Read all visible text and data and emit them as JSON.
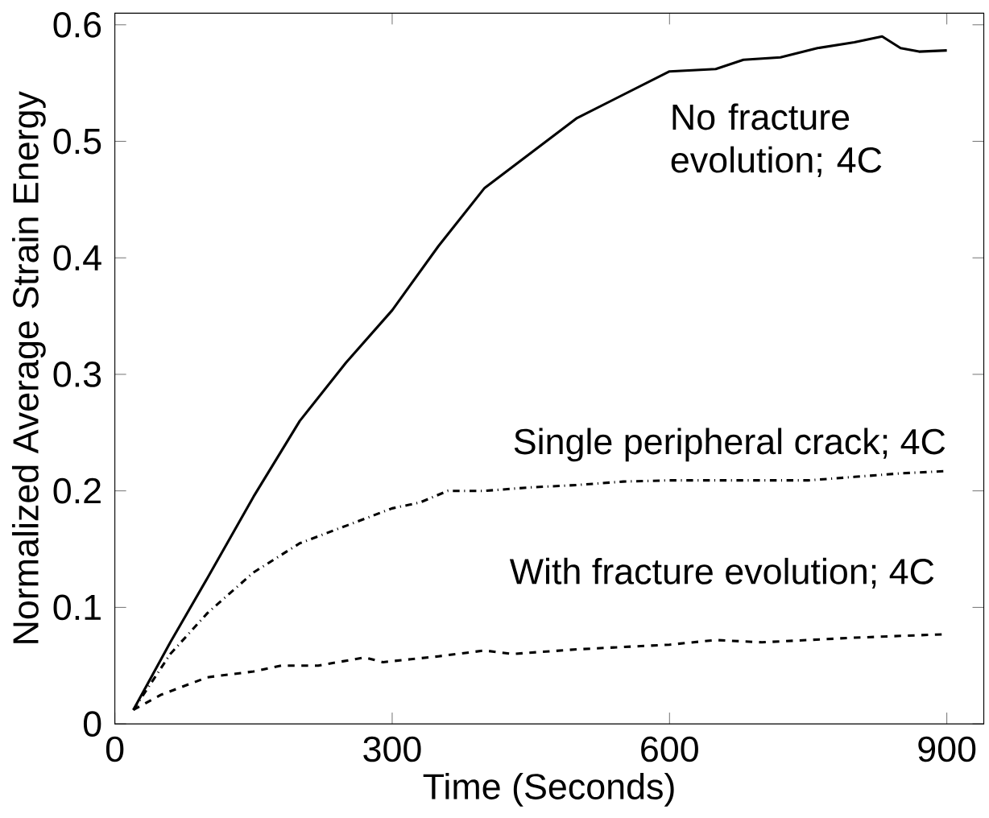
{
  "chart_data": {
    "type": "line",
    "xlabel": "Time (Seconds)",
    "ylabel": "Normalized Average Strain Energy",
    "xlim": [
      0,
      940
    ],
    "ylim": [
      0,
      0.61
    ],
    "xticks": [
      0,
      300,
      600,
      900
    ],
    "yticks": [
      0,
      0.1,
      0.2,
      0.3,
      0.4,
      0.5,
      0.6
    ],
    "grid": false,
    "legend": false,
    "marker": "none",
    "series": [
      {
        "name": "No fracture evolution; 4C",
        "color": "#000000",
        "line_style": "solid",
        "x": [
          20,
          60,
          100,
          150,
          200,
          250,
          300,
          350,
          400,
          450,
          500,
          550,
          600,
          650,
          680,
          720,
          760,
          800,
          830,
          850,
          870,
          900
        ],
        "values": [
          0.012,
          0.07,
          0.125,
          0.195,
          0.26,
          0.31,
          0.355,
          0.41,
          0.46,
          0.49,
          0.52,
          0.54,
          0.56,
          0.562,
          0.57,
          0.572,
          0.58,
          0.585,
          0.59,
          0.58,
          0.577,
          0.578
        ]
      },
      {
        "name": "Single peripheral crack; 4C",
        "color": "#000000",
        "line_style": "dashdot",
        "x": [
          20,
          60,
          100,
          150,
          200,
          250,
          300,
          330,
          360,
          400,
          450,
          500,
          550,
          600,
          700,
          750,
          800,
          850,
          900
        ],
        "values": [
          0.012,
          0.06,
          0.095,
          0.13,
          0.155,
          0.17,
          0.185,
          0.19,
          0.2,
          0.2,
          0.203,
          0.205,
          0.208,
          0.209,
          0.209,
          0.209,
          0.212,
          0.215,
          0.217
        ]
      },
      {
        "name": "With fracture evolution; 4C",
        "color": "#000000",
        "line_style": "dashed",
        "x": [
          20,
          50,
          100,
          150,
          180,
          220,
          270,
          290,
          350,
          400,
          430,
          500,
          600,
          650,
          700,
          800,
          900
        ],
        "values": [
          0.012,
          0.025,
          0.04,
          0.045,
          0.05,
          0.05,
          0.057,
          0.053,
          0.058,
          0.063,
          0.06,
          0.064,
          0.068,
          0.072,
          0.07,
          0.074,
          0.077
        ]
      }
    ]
  }
}
